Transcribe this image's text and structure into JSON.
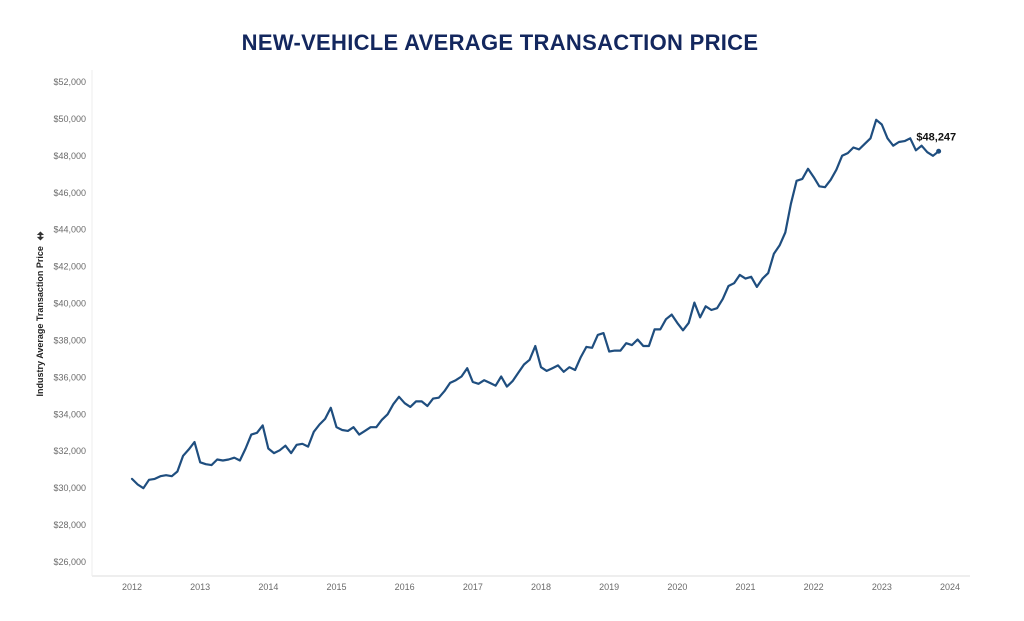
{
  "title": "NEW-VEHICLE AVERAGE TRANSACTION PRICE",
  "ylabel_text": "Industry Average Transaction Price",
  "ylabel_icon": "sort-icon",
  "colors": {
    "line": "#1f4e7f",
    "title": "#13275e",
    "axis": "#dddddd",
    "tick": "#6b6b6b"
  },
  "chart_data": {
    "type": "line",
    "title": "NEW-VEHICLE AVERAGE TRANSACTION PRICE",
    "xlabel": "",
    "ylabel": "Industry Average Transaction Price",
    "ylim": [
      25000,
      52000
    ],
    "xlim": [
      2012,
      2024
    ],
    "yticks": [
      26000,
      28000,
      30000,
      32000,
      34000,
      36000,
      38000,
      40000,
      42000,
      44000,
      46000,
      48000,
      50000,
      52000
    ],
    "ytick_labels": [
      "$26,000",
      "$28,000",
      "$30,000",
      "$32,000",
      "$34,000",
      "$36,000",
      "$38,000",
      "$40,000",
      "$42,000",
      "$44,000",
      "$46,000",
      "$48,000",
      "$50,000",
      "$52,000"
    ],
    "xticks": [
      2012,
      2013,
      2014,
      2015,
      2016,
      2017,
      2018,
      2019,
      2020,
      2021,
      2022,
      2023,
      2024
    ],
    "xtick_labels": [
      "2012",
      "2013",
      "2014",
      "2015",
      "2016",
      "2017",
      "2018",
      "2019",
      "2020",
      "2021",
      "2022",
      "2023",
      "2024"
    ],
    "grid": false,
    "series": [
      {
        "name": "Industry Average Transaction Price",
        "start_year": 2012,
        "start_month": 1,
        "values": [
          30500,
          30200,
          30000,
          30450,
          30500,
          30650,
          30700,
          30650,
          30900,
          31750,
          32100,
          32500,
          31400,
          31300,
          31250,
          31550,
          31500,
          31550,
          31650,
          31500,
          32150,
          32900,
          33000,
          33400,
          32150,
          31900,
          32050,
          32300,
          31900,
          32350,
          32400,
          32250,
          33050,
          33450,
          33750,
          34350,
          33300,
          33150,
          33100,
          33300,
          32900,
          33100,
          33300,
          33300,
          33700,
          34000,
          34550,
          34950,
          34600,
          34400,
          34700,
          34700,
          34450,
          34850,
          34900,
          35250,
          35700,
          35850,
          36050,
          36500,
          35750,
          35650,
          35850,
          35700,
          35550,
          36050,
          35500,
          35800,
          36250,
          36700,
          36950,
          37700,
          36550,
          36350,
          36500,
          36650,
          36300,
          36550,
          36400,
          37100,
          37650,
          37600,
          38300,
          38400,
          37400,
          37450,
          37450,
          37850,
          37750,
          38050,
          37700,
          37700,
          38600,
          38600,
          39150,
          39400,
          38950,
          38550,
          38950,
          40050,
          39250,
          39850,
          39650,
          39750,
          40250,
          40950,
          41100,
          41550,
          41350,
          41450,
          40900,
          41350,
          41650,
          42700,
          43150,
          43850,
          45400,
          46650,
          46750,
          47300,
          46850,
          46350,
          46300,
          46700,
          47250,
          48000,
          48150,
          48450,
          48350,
          48650,
          48950,
          49950,
          49700,
          48950,
          48550,
          48750,
          48800,
          48950,
          48300,
          48550,
          48200,
          48000,
          48247
        ]
      }
    ],
    "annotations": [
      {
        "text": "$48,247",
        "x": 2023.83,
        "y": 48247
      }
    ]
  }
}
